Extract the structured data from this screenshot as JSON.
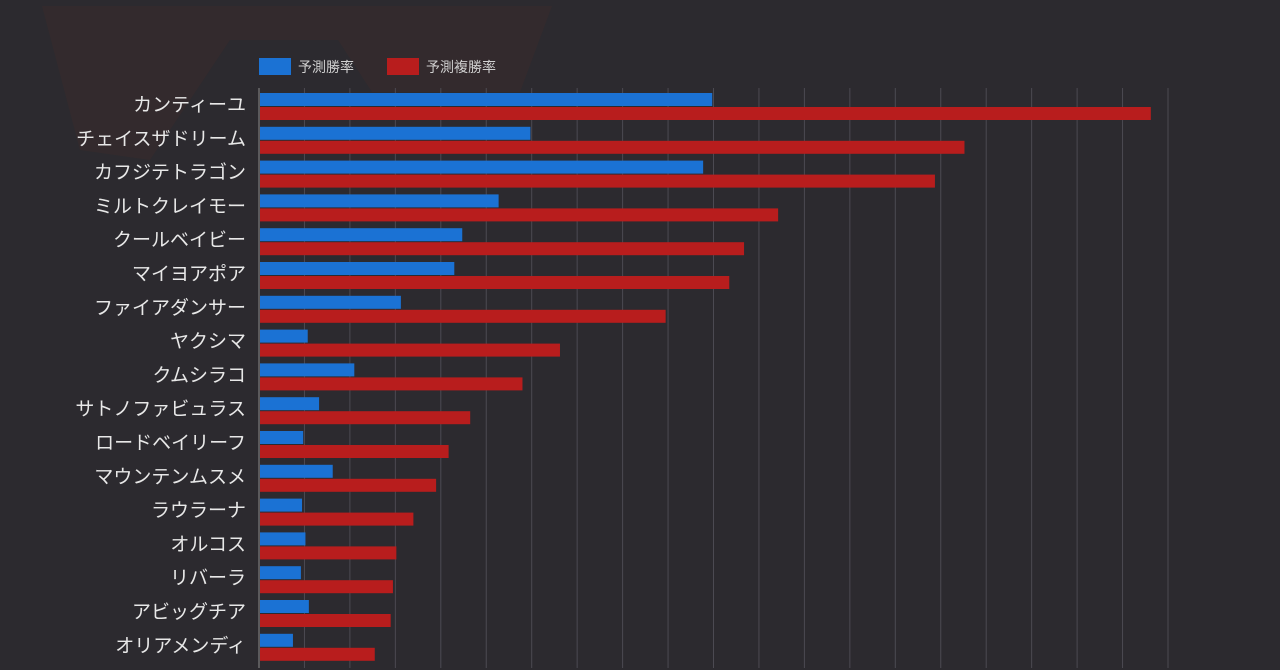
{
  "chart_data": {
    "type": "bar",
    "orientation": "horizontal",
    "categories": [
      "カンティーユ",
      "チェイスザドリーム",
      "カフジテトラゴン",
      "ミルトクレイモー",
      "クールベイビー",
      "マイヨアポア",
      "ファイアダンサー",
      "ヤクシマ",
      "クムシラコ",
      "サトノファビュラス",
      "ロードベイリーフ",
      "マウンテンムスメ",
      "ラウラーナ",
      "オルコス",
      "リバーラ",
      "アビッグチア",
      "オリアメンディ"
    ],
    "series": [
      {
        "name": "予測勝率",
        "color": "#1b72d4",
        "values": [
          19.9,
          11.9,
          19.5,
          10.5,
          8.9,
          8.55,
          6.2,
          2.1,
          4.15,
          2.6,
          1.9,
          3.2,
          1.85,
          2.0,
          1.8,
          2.15,
          1.45
        ]
      },
      {
        "name": "予測複勝率",
        "color": "#b81d1d",
        "values": [
          39.2,
          31.0,
          29.7,
          22.8,
          21.3,
          20.65,
          17.85,
          13.2,
          11.55,
          9.25,
          8.3,
          7.75,
          6.75,
          6.0,
          5.85,
          5.75,
          5.05
        ]
      }
    ],
    "xlim": [
      0,
      40
    ],
    "grid_step": 2,
    "grid": true,
    "legend": "top-left"
  },
  "colors": {
    "background": "#2c2a2f",
    "grid": "#4c4a52",
    "label": "#e8e8e8",
    "legend_text": "#cfcfcf"
  }
}
